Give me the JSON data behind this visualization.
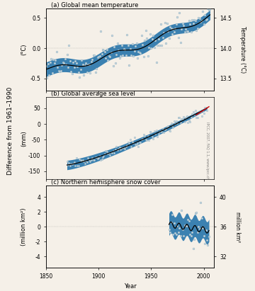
{
  "bg_color": "#f5f0e8",
  "panel_bg": "#f5f0e8",
  "blue_fill": "#1a6ea8",
  "black_line": "#000000",
  "dot_color": "#c8d8e0",
  "red_line": "#cc0000",
  "title_a": "(a) Global mean temperature",
  "title_b": "(b) Global average sea level",
  "title_c": "(c) Northern hemisphere snow cover",
  "xlabel": "Year",
  "ylabel_left": "Difference from 1961–1990",
  "ylabel_a_left": "(°C)",
  "ylabel_a_right": "Temperature (°C)",
  "ylabel_b_left": "(mm)",
  "ylabel_c_left": "(million km²)",
  "ylabel_c_right": "million km²",
  "yticks_a_right": [
    13.5,
    14.0,
    14.5
  ],
  "yticks_c_right": [
    32,
    36,
    40
  ],
  "year_start": 1850,
  "year_end": 2010,
  "source_text": "IPCC, 2007, FAQ 1.1, www.ipcc.ch"
}
